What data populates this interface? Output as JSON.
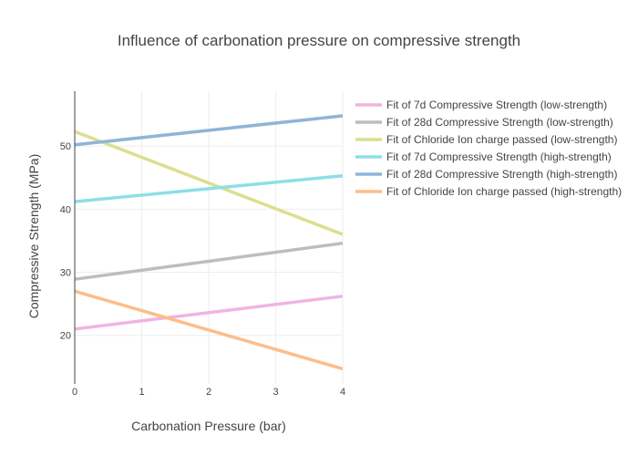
{
  "chart_data": {
    "type": "line",
    "title": "Influence of carbonation pressure on compressive strength",
    "xlabel": "Carbonation Pressure (bar)",
    "ylabel": "Compressive Strength (MPa)",
    "xlim": [
      0,
      4
    ],
    "ylim": [
      12.3,
      58.7
    ],
    "xticks": [
      0,
      1,
      2,
      3,
      4
    ],
    "yticks": [
      20,
      30,
      40,
      50
    ],
    "grid": true,
    "legend_position": "right",
    "x": [
      0,
      4
    ],
    "series": [
      {
        "name": "Fit of 7d Compressive Strength (low-strength)",
        "color": "#f0b4e0",
        "values": [
          21.0,
          26.2
        ]
      },
      {
        "name": "Fit of 28d Compressive Strength (low-strength)",
        "color": "#bdbdbd",
        "values": [
          28.9,
          34.6
        ]
      },
      {
        "name": "Fit of Chloride Ion charge passed (low-strength)",
        "color": "#dbdf8f",
        "values": [
          52.3,
          36.0
        ]
      },
      {
        "name": "Fit of 7d Compressive Strength (high-strength)",
        "color": "#8ddfe6",
        "values": [
          41.2,
          45.3
        ]
      },
      {
        "name": "Fit of 28d Compressive Strength (high-strength)",
        "color": "#8fb5d8",
        "values": [
          50.2,
          54.8
        ]
      },
      {
        "name": "Fit of Chloride Ion charge passed (high-strength)",
        "color": "#fdbd8a",
        "values": [
          27.0,
          14.7
        ]
      }
    ]
  }
}
